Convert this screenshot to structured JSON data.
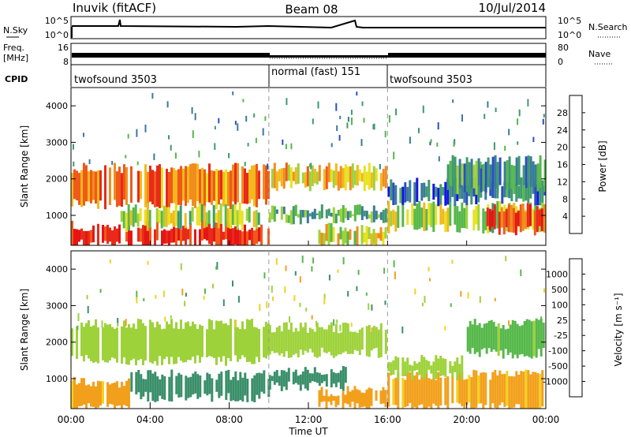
{
  "header": {
    "site": "Inuvik (fitACF)",
    "beam": "Beam 08",
    "date": "10/Jul/2014"
  },
  "strip_panels": {
    "nsky_label": "N.Sky",
    "nsky_ticks": [
      "10^5",
      "10^0"
    ],
    "nsearch_label": "N.Search",
    "nsearch_ticks": [
      "10^5",
      "10^0"
    ],
    "freq_label": "Freq.",
    "freq_unit": "[MHz]",
    "freq_ticks": [
      "16",
      "8"
    ],
    "nave_label": "Nave",
    "nave_ticks": [
      "80",
      "0"
    ],
    "cpid_label": "CPID",
    "cpid_segments": [
      {
        "label": "twofsound 3503",
        "start_hour": 0,
        "end_hour": 10
      },
      {
        "label": "normal (fast) 151",
        "start_hour": 10,
        "end_hour": 16
      },
      {
        "label": "twofsound 3503",
        "start_hour": 16,
        "end_hour": 24
      }
    ]
  },
  "chart_data": [
    {
      "type": "heatmap",
      "quantity": "power",
      "ylabel": "Slant Range [km]",
      "yticks": [
        1000,
        2000,
        3000,
        4000
      ],
      "ylim": [
        180,
        4500
      ],
      "xlim_hours": [
        0,
        24
      ],
      "colorbar": {
        "label": "Power [dB]",
        "ticks": [
          "4",
          "8",
          "12",
          "16",
          "20",
          "24",
          "28"
        ],
        "range": [
          0,
          30
        ],
        "colors": [
          "#1414e6",
          "#2a4fc0",
          "#3a7a9a",
          "#3e9a6e",
          "#56b84a",
          "#9ed23a",
          "#e8e21e",
          "#f2b81c",
          "#f28c1c",
          "#ef5a1a",
          "#e82a1a",
          "#e61414"
        ]
      },
      "bands": [
        {
          "start": 0.0,
          "end": 10.0,
          "low": 200,
          "high": 700,
          "value": 27
        },
        {
          "start": 0.0,
          "end": 10.0,
          "low": 1300,
          "high": 2300,
          "value": 22
        },
        {
          "start": 2.5,
          "end": 9.5,
          "low": 700,
          "high": 1200,
          "value": 14
        },
        {
          "start": 10.0,
          "end": 16.0,
          "low": 1800,
          "high": 2300,
          "value": 18
        },
        {
          "start": 10.0,
          "end": 16.0,
          "low": 900,
          "high": 1150,
          "value": 10
        },
        {
          "start": 12.5,
          "end": 16.0,
          "low": 250,
          "high": 650,
          "value": 17
        },
        {
          "start": 16.0,
          "end": 24.0,
          "low": 650,
          "high": 1250,
          "value": 14
        },
        {
          "start": 16.0,
          "end": 24.0,
          "low": 1400,
          "high": 1900,
          "value": 6
        },
        {
          "start": 19.0,
          "end": 24.0,
          "low": 1700,
          "high": 2500,
          "value": 9
        },
        {
          "start": 21.0,
          "end": 24.0,
          "low": 600,
          "high": 1200,
          "value": 25
        }
      ]
    },
    {
      "type": "heatmap",
      "quantity": "velocity",
      "xlabel": "Time UT",
      "ylabel": "Slant Range [km]",
      "xticks": [
        "00:00",
        "04:00",
        "08:00",
        "12:00",
        "16:00",
        "20:00",
        "00:00"
      ],
      "yticks": [
        1000,
        2000,
        3000,
        4000
      ],
      "ylim": [
        180,
        4500
      ],
      "xlim_hours": [
        0,
        24
      ],
      "colorbar": {
        "label": "Velocity [m s⁻¹]",
        "ticks": [
          "-1000",
          "-500",
          "-100",
          "-25",
          "25",
          "100",
          "500",
          "1000"
        ],
        "colors": [
          "#e61414",
          "#ef5a1a",
          "#f2a01c",
          "#f2d21e",
          "#c8c8c8",
          "#9ed23a",
          "#56b84a",
          "#3a8f6a",
          "#2a5fb0",
          "#1414c8"
        ]
      },
      "bands": [
        {
          "start": 0.0,
          "end": 10.0,
          "low": 1500,
          "high": 2500,
          "value": 0
        },
        {
          "start": 0.0,
          "end": 3.0,
          "low": 200,
          "high": 900,
          "value": -150
        },
        {
          "start": 3.0,
          "end": 10.0,
          "low": 500,
          "high": 1100,
          "value": 300
        },
        {
          "start": 10.0,
          "end": 16.0,
          "low": 1700,
          "high": 2400,
          "value": 0
        },
        {
          "start": 10.0,
          "end": 14.0,
          "low": 800,
          "high": 1200,
          "value": 350
        },
        {
          "start": 12.5,
          "end": 16.0,
          "low": 250,
          "high": 650,
          "value": -200
        },
        {
          "start": 16.0,
          "end": 24.0,
          "low": 200,
          "high": 1100,
          "value": -150
        },
        {
          "start": 16.0,
          "end": 20.0,
          "low": 1100,
          "high": 1500,
          "value": 0
        },
        {
          "start": 20.0,
          "end": 24.0,
          "low": 1700,
          "high": 2500,
          "value": 60
        }
      ]
    }
  ]
}
